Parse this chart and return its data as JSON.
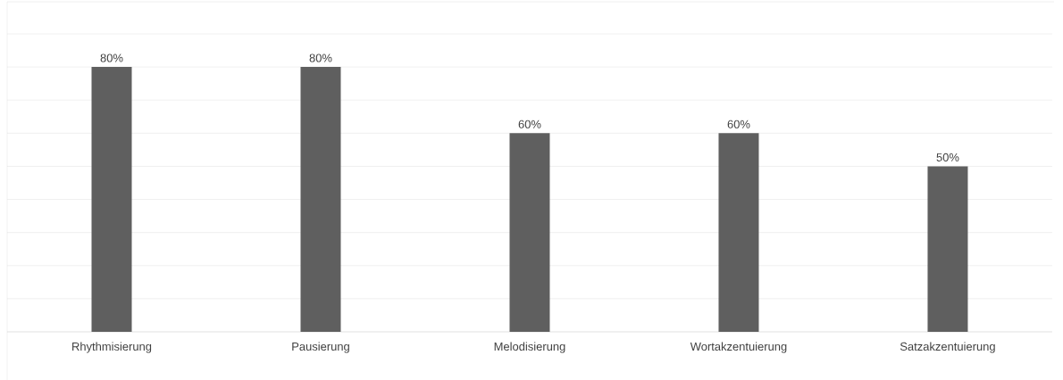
{
  "chart_data": {
    "type": "bar",
    "categories": [
      "Rhythmisierung",
      "Pausierung",
      "Melodisierung",
      "Wortakzentuierung",
      "Satzakzentuierung"
    ],
    "values": [
      80,
      80,
      60,
      60,
      50
    ],
    "value_labels": [
      "80%",
      "80%",
      "60%",
      "60%",
      "50%"
    ],
    "color": "#5f5f5f",
    "ylim": [
      0,
      90
    ],
    "yticks": [
      {
        "value": 0,
        "label": null
      },
      {
        "value": 10,
        "label": null
      },
      {
        "value": 20,
        "label": null
      },
      {
        "value": 30,
        "label": null
      },
      {
        "value": 40,
        "label": null
      },
      {
        "value": 50,
        "label": null
      },
      {
        "value": 60,
        "label": null
      },
      {
        "value": 70,
        "label": null
      },
      {
        "value": 80,
        "label": null
      },
      {
        "value": 90,
        "label": null
      }
    ],
    "grid": "y",
    "tick_labels": "x"
  }
}
